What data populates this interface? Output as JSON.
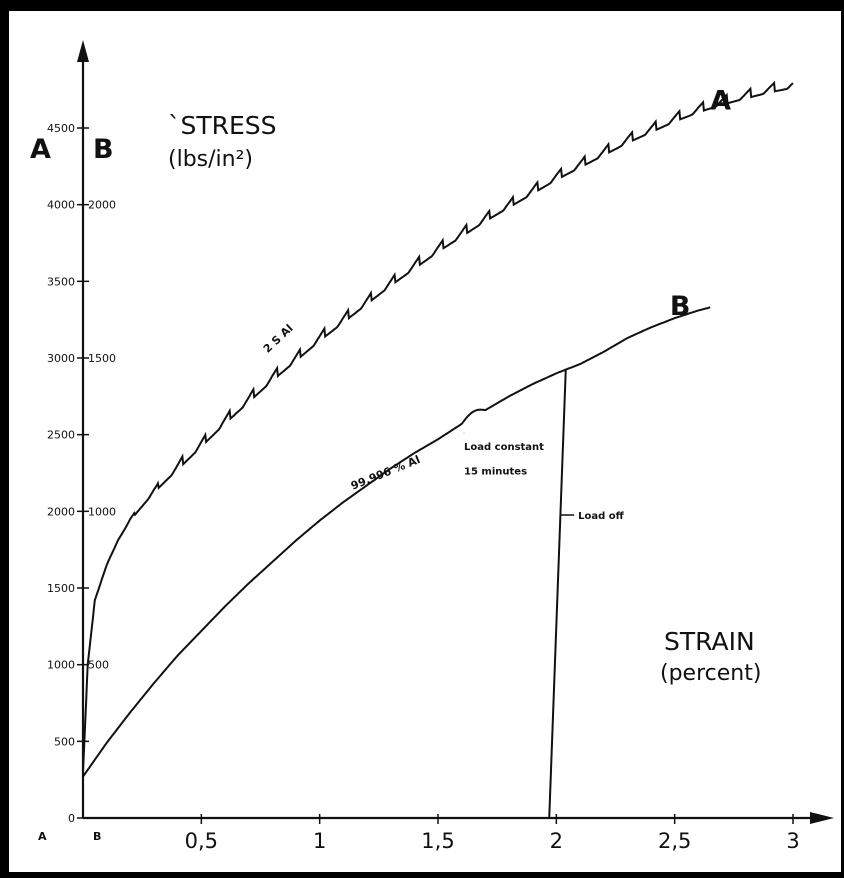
{
  "chart_data": {
    "type": "line",
    "title": "",
    "ylabel": "`STRESS",
    "ylabel_unit": "(lbs/in²)",
    "xlabel": "STRAIN",
    "xlabel_unit": "(percent)",
    "scale_labels": {
      "A": "A",
      "B": "B"
    },
    "xlim": [
      0,
      3
    ],
    "ylim_A": [
      0,
      4800
    ],
    "ylim_B": [
      0,
      2400
    ],
    "x_ticks": [
      {
        "v": 0.5,
        "label": "0,5"
      },
      {
        "v": 1,
        "label": "1"
      },
      {
        "v": 1.5,
        "label": "1,5"
      },
      {
        "v": 2,
        "label": "2"
      },
      {
        "v": 2.5,
        "label": "2,5"
      },
      {
        "v": 3,
        "label": "3"
      }
    ],
    "x_origin_labels": [
      "A",
      "B"
    ],
    "y_ticks_A": [
      {
        "v": 0,
        "label": "0"
      },
      {
        "v": 500,
        "label": "500"
      },
      {
        "v": 1000,
        "label": "1000"
      },
      {
        "v": 1500,
        "label": "1500"
      },
      {
        "v": 2000,
        "label": "2000"
      },
      {
        "v": 2500,
        "label": "2500"
      },
      {
        "v": 3000,
        "label": "3000"
      },
      {
        "v": 3500,
        "label": "3500"
      },
      {
        "v": 4000,
        "label": "4000"
      },
      {
        "v": 4500,
        "label": "4500"
      }
    ],
    "y_ticks_B": [
      {
        "v": 500,
        "label": "500"
      },
      {
        "v": 1000,
        "label": "1000"
      },
      {
        "v": 1500,
        "label": "1500"
      },
      {
        "v": 2000,
        "label": "2000"
      }
    ],
    "series": [
      {
        "name": "A",
        "curve_label": "2 S Al",
        "scale": "A",
        "x": [
          0.0,
          0.02,
          0.05,
          0.1,
          0.15,
          0.2,
          0.3,
          0.4,
          0.5,
          0.6,
          0.7,
          0.8,
          0.9,
          1.0,
          1.1,
          1.2,
          1.3,
          1.4,
          1.5,
          1.6,
          1.7,
          1.8,
          1.9,
          2.0,
          2.1,
          2.2,
          2.3,
          2.4,
          2.5,
          2.6,
          2.7,
          2.8,
          2.9,
          3.0
        ],
        "y": [
          300,
          1000,
          1420,
          1650,
          1820,
          1950,
          2140,
          2300,
          2450,
          2600,
          2740,
          2880,
          3010,
          3140,
          3260,
          3380,
          3500,
          3610,
          3720,
          3820,
          3920,
          4010,
          4100,
          4190,
          4270,
          4350,
          4430,
          4500,
          4570,
          4630,
          4680,
          4720,
          4760,
          4790
        ],
        "steps": true
      },
      {
        "name": "B",
        "curve_label": "99.996 % Al",
        "scale": "B",
        "x": [
          0.0,
          0.1,
          0.2,
          0.3,
          0.4,
          0.5,
          0.6,
          0.7,
          0.8,
          0.9,
          1.0,
          1.1,
          1.2,
          1.3,
          1.4,
          1.5,
          1.6,
          1.7,
          1.8,
          1.9,
          2.0,
          2.1,
          2.2,
          2.3,
          2.4,
          2.5,
          2.6,
          2.65
        ],
        "y": [
          135,
          245,
          345,
          440,
          530,
          610,
          690,
          765,
          835,
          905,
          970,
          1030,
          1085,
          1140,
          1190,
          1235,
          1285,
          1330,
          1375,
          1415,
          1450,
          1480,
          1520,
          1565,
          1600,
          1630,
          1655,
          1665
        ]
      }
    ],
    "unloading_line": {
      "x": [
        1.97,
        2.04
      ],
      "y_B": [
        0,
        1465
      ]
    },
    "annotations": [
      {
        "text": "Load constant",
        "x": 1.61,
        "y_B": 1210
      },
      {
        "text": "15 minutes",
        "x": 1.61,
        "y_B": 1130
      },
      {
        "text": "Load off",
        "x": 2.05,
        "y_B": 975
      }
    ]
  }
}
